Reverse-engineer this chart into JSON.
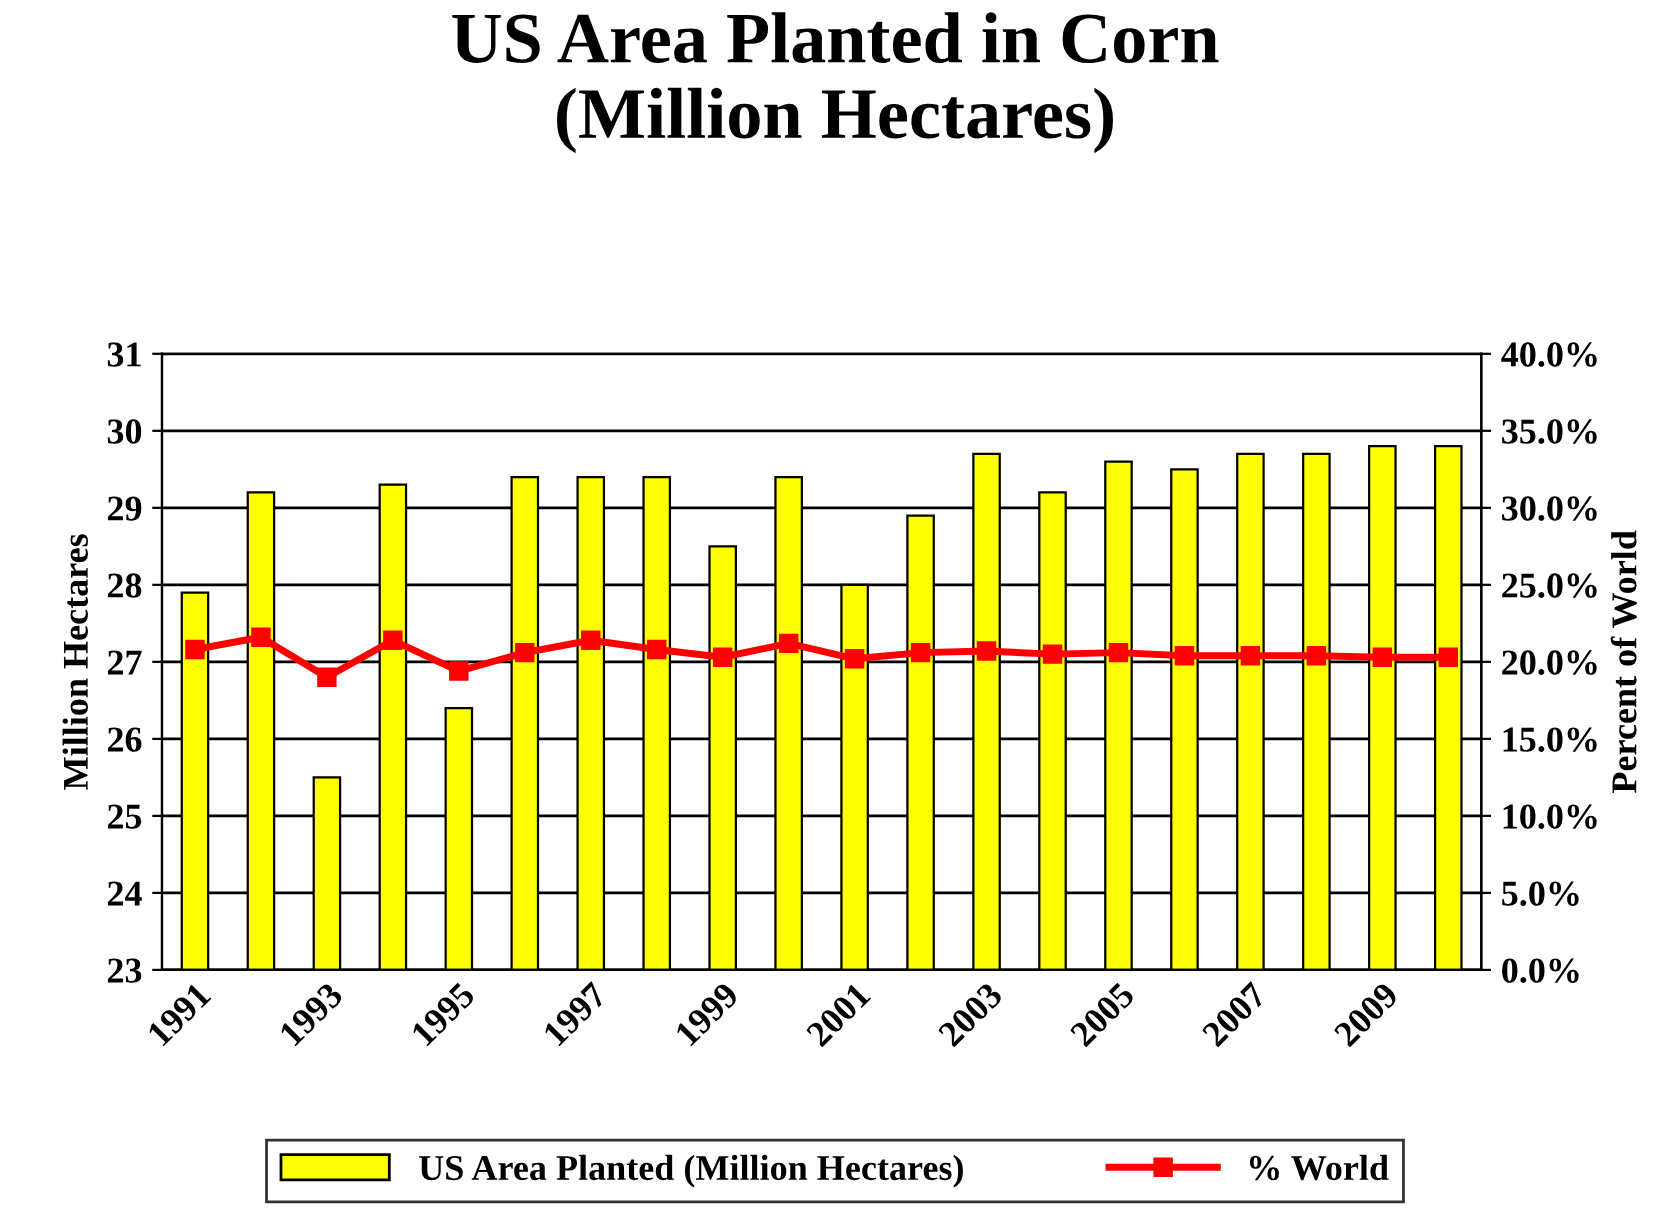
{
  "chart_data": {
    "type": "bar",
    "title": "US Area Planted in Corn\n(Million Hectares)",
    "categories": [
      "1991",
      null,
      "1993",
      null,
      "1995",
      null,
      "1997",
      null,
      "1999",
      null,
      "2001",
      null,
      "2003",
      null,
      "2005",
      null,
      "2007",
      null,
      "2009",
      null
    ],
    "series": [
      {
        "name": "US Area Planted (Million Hectares)",
        "color": "#ffff00",
        "values": [
          27.9,
          29.2,
          25.5,
          29.3,
          26.4,
          29.4,
          29.4,
          29.4,
          28.5,
          29.4,
          28.0,
          28.9,
          29.7,
          29.2,
          29.6,
          29.5,
          29.7,
          29.7,
          29.8,
          29.8
        ]
      },
      {
        "name": "% World",
        "type": "line",
        "axis": "y2",
        "color": "#ff0000",
        "marker": "square",
        "values": [
          20.8,
          21.6,
          19.0,
          21.4,
          19.4,
          20.6,
          21.4,
          20.8,
          20.3,
          21.2,
          20.2,
          20.6,
          20.7,
          20.5,
          20.6,
          20.4,
          20.4,
          20.4,
          20.3,
          20.3
        ]
      }
    ],
    "ylabel": "Million Hectares",
    "y2label": "Percent of World",
    "ylim": [
      23,
      31
    ],
    "yticks": [
      23,
      24,
      25,
      26,
      27,
      28,
      29,
      30,
      31
    ],
    "y2lim": [
      0,
      40
    ],
    "y2ticks": [
      {
        "value": 0,
        "label": "0.0%"
      },
      {
        "value": 5,
        "label": "5.0%"
      },
      {
        "value": 10,
        "label": "10.0%"
      },
      {
        "value": 15,
        "label": "15.0%"
      },
      {
        "value": 20,
        "label": "20.0%"
      },
      {
        "value": 25,
        "label": "25.0%"
      },
      {
        "value": 30,
        "label": "30.0%"
      },
      {
        "value": 35,
        "label": "35.0%"
      },
      {
        "value": 40,
        "label": "40.0%"
      }
    ],
    "grid": "y",
    "legend": "bottom"
  }
}
